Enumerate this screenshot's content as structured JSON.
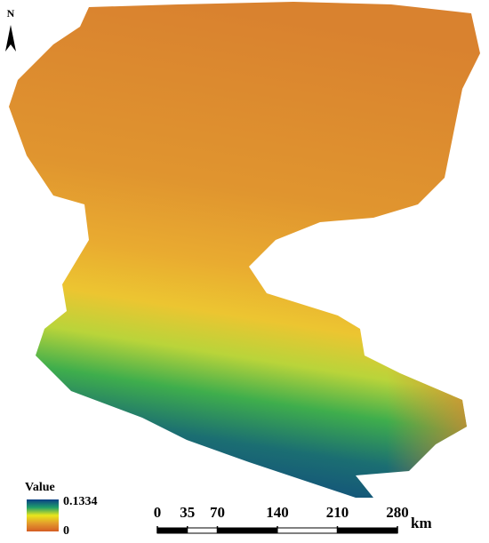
{
  "north_arrow": {
    "label": "N"
  },
  "legend": {
    "title": "Value",
    "max": 0.1334,
    "min": 0,
    "colors": [
      "#0b3f86",
      "#1f9e6a",
      "#e9e71c",
      "#e39a2c",
      "#d45d24"
    ]
  },
  "scale_bar": {
    "ticks": [
      0,
      35,
      70,
      140,
      210,
      280
    ],
    "unit": "km"
  }
}
